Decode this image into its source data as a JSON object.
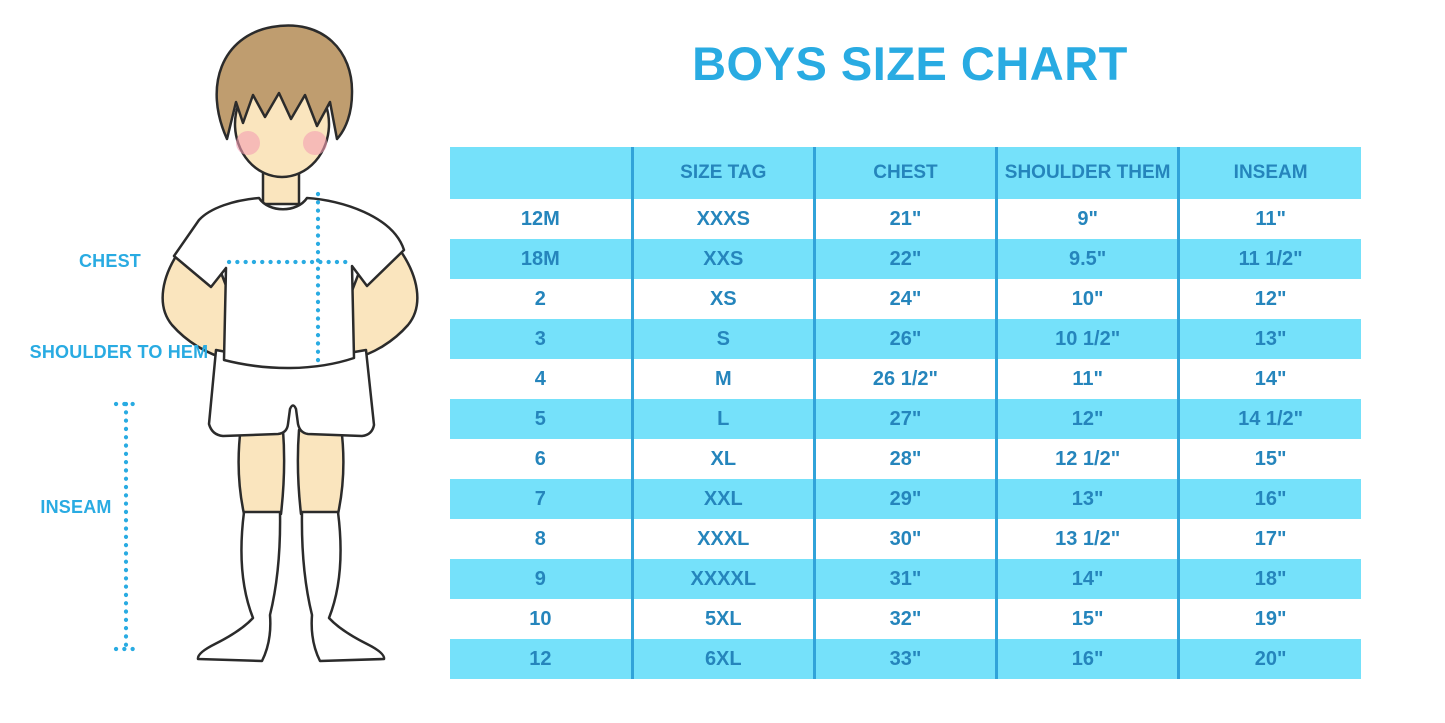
{
  "colors": {
    "accent": "#29ABE2",
    "row_cyan": "#75E1FA",
    "table_text": "#2585BC",
    "separator": "#31A3D9"
  },
  "figure": {
    "labels": {
      "chest": "CHEST",
      "shoulder_to_hem": "SHOULDER TO HEM",
      "inseam": "INSEAM"
    }
  },
  "chart_data": {
    "type": "table",
    "title": "BOYS SIZE CHART",
    "columns": [
      "",
      "SIZE TAG",
      "CHEST",
      "SHOULDER THEM",
      "INSEAM"
    ],
    "rows": [
      [
        "12M",
        "XXXS",
        "21\"",
        "9\"",
        "11\""
      ],
      [
        "18M",
        "XXS",
        "22\"",
        "9.5\"",
        "11 1/2\""
      ],
      [
        "2",
        "XS",
        "24\"",
        "10\"",
        "12\""
      ],
      [
        "3",
        "S",
        "26\"",
        "10 1/2\"",
        "13\""
      ],
      [
        "4",
        "M",
        "26 1/2\"",
        "11\"",
        "14\""
      ],
      [
        "5",
        "L",
        "27\"",
        "12\"",
        "14 1/2\""
      ],
      [
        "6",
        "XL",
        "28\"",
        "12 1/2\"",
        "15\""
      ],
      [
        "7",
        "XXL",
        "29\"",
        "13\"",
        "16\""
      ],
      [
        "8",
        "XXXL",
        "30\"",
        "13 1/2\"",
        "17\""
      ],
      [
        "9",
        "XXXXL",
        "31\"",
        "14\"",
        "18\""
      ],
      [
        "10",
        "5XL",
        "32\"",
        "15\"",
        "19\""
      ],
      [
        "12",
        "6XL",
        "33\"",
        "16\"",
        "20\""
      ]
    ],
    "layout": {
      "header_fill": "cyan",
      "row_striping": "white/cyan alternating starting white",
      "column_separators": "vertical blue lines between columns only"
    }
  }
}
